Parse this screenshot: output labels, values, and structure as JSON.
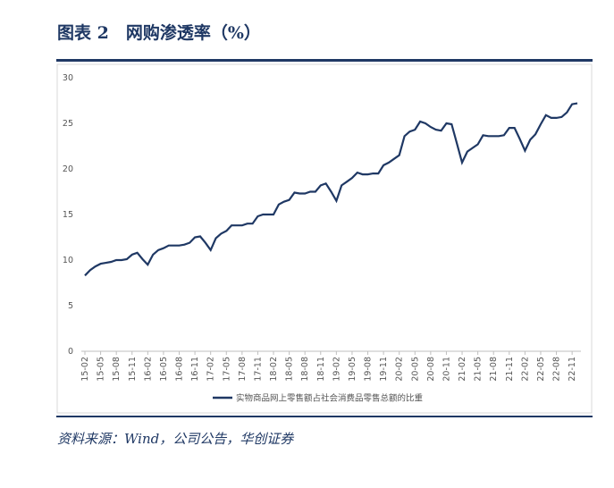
{
  "chart_data": {
    "type": "line",
    "title": "图表 2　网购渗透率（%）",
    "source": "资料来源：Wind，公司公告，华创证券",
    "categories": [
      "15-02",
      null,
      null,
      "15-05",
      null,
      null,
      "15-08",
      null,
      null,
      "15-11",
      null,
      null,
      "16-02",
      null,
      null,
      "16-05",
      null,
      null,
      "16-08",
      null,
      null,
      "16-11",
      null,
      null,
      "17-02",
      null,
      null,
      "17-05",
      null,
      null,
      "17-08",
      null,
      null,
      "17-11",
      null,
      null,
      "18-02",
      null,
      null,
      "18-05",
      null,
      null,
      "18-08",
      null,
      null,
      "18-11",
      null,
      null,
      "19-02",
      null,
      null,
      "19-05",
      null,
      null,
      "19-08",
      null,
      null,
      "19-11",
      null,
      null,
      "20-02",
      null,
      null,
      "20-05",
      null,
      null,
      "20-08",
      null,
      null,
      "20-11",
      null,
      null,
      "21-02",
      null,
      null,
      "21-05",
      null,
      null,
      "21-08",
      null,
      null,
      "21-11",
      null,
      null,
      "22-02",
      null,
      null,
      "22-05",
      null,
      null,
      "22-08",
      null,
      null,
      "22-11",
      null
    ],
    "series": [
      {
        "name": "实物商品网上零售额占社会消费品零售总额的比重",
        "color": "#1f3864",
        "values": [
          8.3,
          8.9,
          9.3,
          9.6,
          9.7,
          9.8,
          10.0,
          10.0,
          10.1,
          10.6,
          10.8,
          10.1,
          9.5,
          10.6,
          11.1,
          11.3,
          11.6,
          11.6,
          11.6,
          11.7,
          11.9,
          12.5,
          12.6,
          11.9,
          11.1,
          12.4,
          12.9,
          13.2,
          13.8,
          13.8,
          13.8,
          14.0,
          14.0,
          14.8,
          15.0,
          15.0,
          15.0,
          16.1,
          16.4,
          16.6,
          17.4,
          17.3,
          17.3,
          17.5,
          17.5,
          18.2,
          18.4,
          17.5,
          16.5,
          18.2,
          18.6,
          19.0,
          19.6,
          19.4,
          19.4,
          19.5,
          19.5,
          20.4,
          20.7,
          21.1,
          21.5,
          23.6,
          24.1,
          24.3,
          25.2,
          25.0,
          24.6,
          24.3,
          24.2,
          25.0,
          24.9,
          22.8,
          20.7,
          21.9,
          22.3,
          22.7,
          23.7,
          23.6,
          23.6,
          23.6,
          23.7,
          24.5,
          24.5,
          23.3,
          22.0,
          23.2,
          23.8,
          24.9,
          25.9,
          25.6,
          25.6,
          25.7,
          26.2,
          27.1,
          27.2
        ]
      }
    ],
    "ylim": [
      0,
      30
    ],
    "yticks": [
      0,
      5,
      10,
      15,
      20,
      25,
      30
    ],
    "grid": false,
    "legend": "bottom"
  }
}
